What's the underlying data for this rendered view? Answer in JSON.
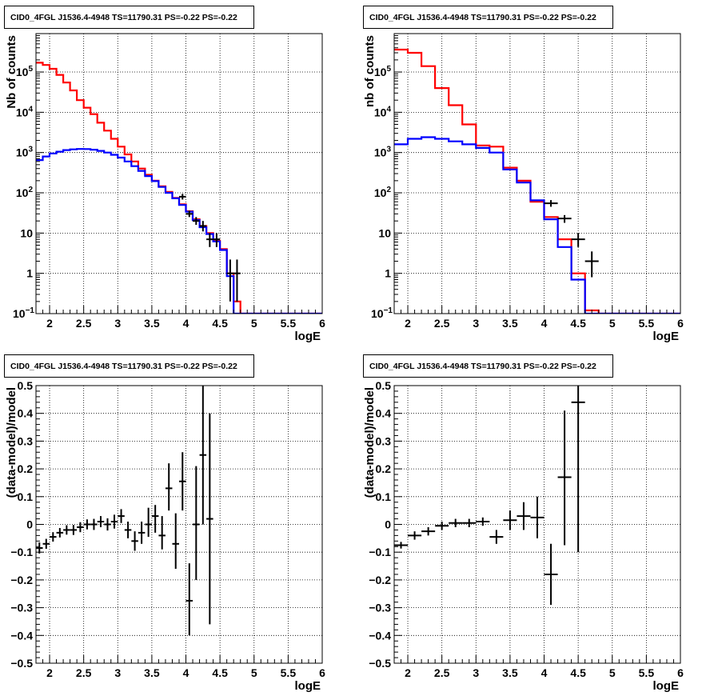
{
  "chart_data": [
    {
      "type": "line",
      "title": "CID0_4FGL J1536.4-4948 TS=11790.31 PS=-0.22 PS=-0.22",
      "xlabel": "logE",
      "ylabel": "Nb of counts",
      "yscale": "log",
      "xlim": [
        1.8,
        6.0
      ],
      "ylim": [
        0.1,
        900000
      ],
      "x_ticks": [
        "2",
        "2.5",
        "3",
        "3.5",
        "4",
        "4.5",
        "5",
        "5.5",
        "6"
      ],
      "y_ticks": [
        "10^-1",
        "1",
        "10",
        "10^2",
        "10^3",
        "10^4",
        "10^5"
      ],
      "grid": true,
      "bin_edges": [
        1.8,
        1.9,
        2.0,
        2.1,
        2.2,
        2.3,
        2.4,
        2.5,
        2.6,
        2.7,
        2.8,
        2.9,
        3.0,
        3.1,
        3.2,
        3.3,
        3.4,
        3.5,
        3.6,
        3.7,
        3.8,
        3.9,
        4.0,
        4.1,
        4.2,
        4.3,
        4.4,
        4.5,
        4.6,
        4.7,
        4.8,
        4.9,
        5.0,
        5.1,
        5.2,
        5.3,
        5.4,
        5.5,
        5.6,
        5.7,
        5.8,
        5.9,
        6.0
      ],
      "series": [
        {
          "color": "#ff0000",
          "values": [
            170000,
            150000,
            120000,
            85000,
            55000,
            35000,
            20000,
            13000,
            9000,
            5500,
            3500,
            2200,
            1400,
            900,
            600,
            400,
            280,
            200,
            145,
            105,
            75,
            52,
            35,
            22,
            15,
            10,
            6.5,
            4.0,
            1.0,
            0.2,
            0.1,
            0.1,
            0.1,
            0.1,
            0.1,
            0.1,
            0.1,
            0.1,
            0.1,
            0.1,
            0.1,
            0.1
          ]
        },
        {
          "color": "#0000ff",
          "values": [
            650,
            800,
            950,
            1050,
            1150,
            1200,
            1230,
            1220,
            1180,
            1100,
            1000,
            880,
            750,
            600,
            460,
            350,
            260,
            195,
            140,
            100,
            73,
            50,
            34,
            21,
            14,
            9.5,
            6.2,
            3.8,
            0.85,
            0.1,
            0.1,
            0.1,
            0.1,
            0.1,
            0.1,
            0.1,
            0.1,
            0.1,
            0.1,
            0.1,
            0.1,
            0.1
          ]
        }
      ],
      "data_points": [
        {
          "x": 3.95,
          "y": 80,
          "ylo": 68,
          "yhi": 94
        },
        {
          "x": 4.05,
          "y": 30,
          "ylo": 25,
          "yhi": 36
        },
        {
          "x": 4.15,
          "y": 20,
          "ylo": 16,
          "yhi": 25
        },
        {
          "x": 4.25,
          "y": 15,
          "ylo": 11,
          "yhi": 20
        },
        {
          "x": 4.35,
          "y": 7,
          "ylo": 4.5,
          "yhi": 10
        },
        {
          "x": 4.45,
          "y": 7,
          "ylo": 4.5,
          "yhi": 10
        },
        {
          "x": 4.65,
          "y": 1,
          "ylo": 0.2,
          "yhi": 2.2
        },
        {
          "x": 4.75,
          "y": 1,
          "ylo": 0.2,
          "yhi": 2.2
        }
      ]
    },
    {
      "type": "line",
      "title": "CID0_4FGL J1536.4-4948 TS=11790.31 PS=-0.22 PS=-0.22",
      "xlabel": "logE",
      "ylabel": "nb of counts",
      "yscale": "log",
      "xlim": [
        1.8,
        6.0
      ],
      "ylim": [
        0.1,
        900000
      ],
      "x_ticks": [
        "2",
        "2.5",
        "3",
        "3.5",
        "4",
        "4.5",
        "5",
        "5.5",
        "6"
      ],
      "y_ticks": [
        "10^-1",
        "1",
        "10",
        "10^2",
        "10^3",
        "10^4",
        "10^5"
      ],
      "grid": true,
      "bin_edges": [
        1.8,
        2.0,
        2.2,
        2.4,
        2.6,
        2.8,
        3.0,
        3.2,
        3.4,
        3.6,
        3.8,
        4.0,
        4.2,
        4.4,
        4.6,
        4.8,
        5.0,
        5.2,
        5.4,
        5.6,
        5.8,
        6.0
      ],
      "series": [
        {
          "color": "#ff0000",
          "values": [
            360000,
            300000,
            140000,
            40000,
            15000,
            5000,
            1500,
            1400,
            420,
            200,
            60,
            25,
            7,
            1.0,
            0.12,
            0.1,
            0.1,
            0.1,
            0.1,
            0.1,
            0.1
          ]
        },
        {
          "color": "#0000ff",
          "values": [
            1600,
            2200,
            2400,
            2200,
            1900,
            1600,
            1300,
            1000,
            380,
            180,
            65,
            22,
            4.5,
            0.7,
            0.1,
            0.1,
            0.1,
            0.1,
            0.1,
            0.1,
            0.1
          ]
        }
      ],
      "data_points": [
        {
          "x": 4.1,
          "y": 55,
          "ylo": 45,
          "yhi": 66
        },
        {
          "x": 4.3,
          "y": 23,
          "ylo": 18,
          "yhi": 28
        },
        {
          "x": 4.5,
          "y": 7,
          "ylo": 4.5,
          "yhi": 10
        },
        {
          "x": 4.7,
          "y": 2,
          "ylo": 0.8,
          "yhi": 3.5
        }
      ]
    },
    {
      "type": "scatter",
      "title": "CID0_4FGL J1536.4-4948 TS=11790.31 PS=-0.22 PS=-0.22",
      "xlabel": "logE",
      "ylabel": "(data-model)/model",
      "xlim": [
        1.8,
        6.0
      ],
      "ylim": [
        -0.5,
        0.5
      ],
      "x_ticks": [
        "2",
        "2.5",
        "3",
        "3.5",
        "4",
        "4.5",
        "5",
        "5.5",
        "6"
      ],
      "y_ticks": [
        "-0.5",
        "-0.4",
        "-0.3",
        "-0.2",
        "-0.1",
        "0",
        "0.1",
        "0.2",
        "0.3",
        "0.4",
        "0.5"
      ],
      "grid": true,
      "points": [
        {
          "x": 1.85,
          "y": -0.085,
          "ylo": -0.105,
          "yhi": -0.065
        },
        {
          "x": 1.95,
          "y": -0.07,
          "ylo": -0.088,
          "yhi": -0.052
        },
        {
          "x": 2.05,
          "y": -0.045,
          "ylo": -0.062,
          "yhi": -0.028
        },
        {
          "x": 2.15,
          "y": -0.03,
          "ylo": -0.047,
          "yhi": -0.013
        },
        {
          "x": 2.25,
          "y": -0.02,
          "ylo": -0.037,
          "yhi": -0.003
        },
        {
          "x": 2.35,
          "y": -0.02,
          "ylo": -0.038,
          "yhi": -0.002
        },
        {
          "x": 2.45,
          "y": -0.01,
          "ylo": -0.028,
          "yhi": 0.008
        },
        {
          "x": 2.55,
          "y": 0.0,
          "ylo": -0.018,
          "yhi": 0.018
        },
        {
          "x": 2.65,
          "y": 0.0,
          "ylo": -0.02,
          "yhi": 0.02
        },
        {
          "x": 2.75,
          "y": 0.01,
          "ylo": -0.01,
          "yhi": 0.03
        },
        {
          "x": 2.85,
          "y": 0.0,
          "ylo": -0.022,
          "yhi": 0.022
        },
        {
          "x": 2.95,
          "y": 0.01,
          "ylo": -0.015,
          "yhi": 0.035
        },
        {
          "x": 3.05,
          "y": 0.03,
          "ylo": 0.005,
          "yhi": 0.055
        },
        {
          "x": 3.15,
          "y": -0.02,
          "ylo": -0.05,
          "yhi": 0.01
        },
        {
          "x": 3.25,
          "y": -0.06,
          "ylo": -0.095,
          "yhi": -0.025
        },
        {
          "x": 3.35,
          "y": -0.03,
          "ylo": -0.07,
          "yhi": 0.01
        },
        {
          "x": 3.45,
          "y": 0.0,
          "ylo": -0.045,
          "yhi": 0.06
        },
        {
          "x": 3.55,
          "y": 0.03,
          "ylo": -0.03,
          "yhi": 0.07
        },
        {
          "x": 3.65,
          "y": -0.04,
          "ylo": -0.09,
          "yhi": 0.03
        },
        {
          "x": 3.75,
          "y": 0.13,
          "ylo": 0.05,
          "yhi": 0.22
        },
        {
          "x": 3.85,
          "y": -0.07,
          "ylo": -0.16,
          "yhi": 0.04
        },
        {
          "x": 3.95,
          "y": 0.155,
          "ylo": 0.05,
          "yhi": 0.26
        },
        {
          "x": 4.05,
          "y": -0.275,
          "ylo": -0.4,
          "yhi": -0.14
        },
        {
          "x": 4.15,
          "y": 0.0,
          "ylo": -0.2,
          "yhi": 0.21
        },
        {
          "x": 4.25,
          "y": 0.25,
          "ylo": 0.0,
          "yhi": 0.5
        },
        {
          "x": 4.35,
          "y": 0.02,
          "ylo": -0.36,
          "yhi": 0.4
        }
      ]
    },
    {
      "type": "scatter",
      "title": "CID0_4FGL J1536.4-4948 TS=11790.31 PS=-0.22 PS=-0.22",
      "xlabel": "logE",
      "ylabel": "(data-model)/model",
      "xlim": [
        1.8,
        6.0
      ],
      "ylim": [
        -0.5,
        0.5
      ],
      "x_ticks": [
        "2",
        "2.5",
        "3",
        "3.5",
        "4",
        "4.5",
        "5",
        "5.5",
        "6"
      ],
      "y_ticks": [
        "-0.5",
        "-0.4",
        "-0.3",
        "-0.2",
        "-0.1",
        "0",
        "0.1",
        "0.2",
        "0.3",
        "0.4",
        "0.5"
      ],
      "grid": true,
      "points": [
        {
          "x": 1.9,
          "y": -0.075,
          "ylo": -0.087,
          "yhi": -0.063
        },
        {
          "x": 2.1,
          "y": -0.04,
          "ylo": -0.055,
          "yhi": -0.025
        },
        {
          "x": 2.3,
          "y": -0.025,
          "ylo": -0.04,
          "yhi": -0.01
        },
        {
          "x": 2.5,
          "y": -0.005,
          "ylo": -0.02,
          "yhi": 0.01
        },
        {
          "x": 2.7,
          "y": 0.005,
          "ylo": -0.01,
          "yhi": 0.02
        },
        {
          "x": 2.9,
          "y": 0.005,
          "ylo": -0.01,
          "yhi": 0.02
        },
        {
          "x": 3.1,
          "y": 0.01,
          "ylo": -0.005,
          "yhi": 0.025
        },
        {
          "x": 3.3,
          "y": -0.045,
          "ylo": -0.07,
          "yhi": -0.02
        },
        {
          "x": 3.5,
          "y": 0.015,
          "ylo": -0.02,
          "yhi": 0.05
        },
        {
          "x": 3.7,
          "y": 0.03,
          "ylo": -0.02,
          "yhi": 0.08
        },
        {
          "x": 3.9,
          "y": 0.025,
          "ylo": -0.05,
          "yhi": 0.1
        },
        {
          "x": 4.1,
          "y": -0.18,
          "ylo": -0.29,
          "yhi": -0.07
        },
        {
          "x": 4.3,
          "y": 0.17,
          "ylo": -0.075,
          "yhi": 0.41
        },
        {
          "x": 4.5,
          "y": 0.44,
          "ylo": -0.1,
          "yhi": 0.5
        }
      ]
    }
  ]
}
